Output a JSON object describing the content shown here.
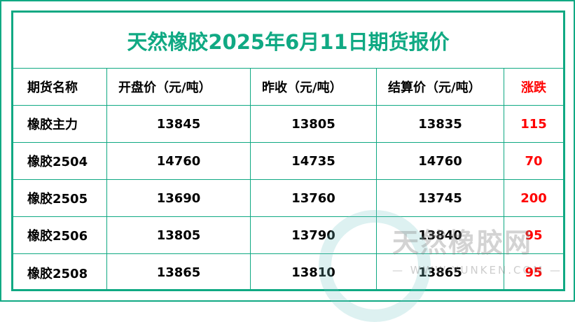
{
  "title": "天然橡胶2025年6月11日期货报价",
  "headers": [
    "期货名称",
    "开盘价（元/吨）",
    "昨收（元/吨）",
    "结算价（元/吨）",
    "涨跌"
  ],
  "rows": [
    [
      "橡胶主力",
      "13845",
      "13805",
      "13835",
      "115"
    ],
    [
      "橡胶2504",
      "14760",
      "14735",
      "14760",
      "70"
    ],
    [
      "橡胶2505",
      "13690",
      "13760",
      "13745",
      "200"
    ],
    [
      "橡胶2506",
      "13805",
      "13790",
      "13840",
      "95"
    ],
    [
      "橡胶2508",
      "13865",
      "13810",
      "13865",
      "95"
    ]
  ],
  "watermark": {
    "name": "天然橡胶网",
    "url": "— WWW.YUNKEN.COM —"
  },
  "colors": {
    "accent": "#10a983",
    "change": "#ff0000"
  }
}
